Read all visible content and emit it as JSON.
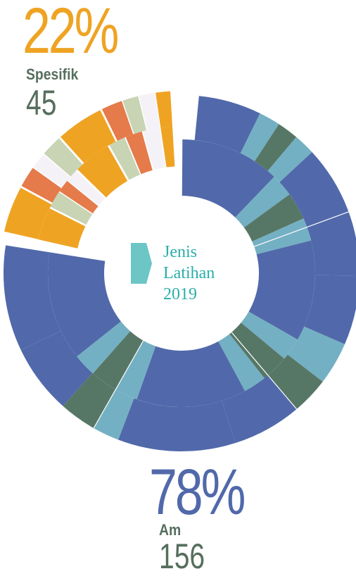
{
  "colors": {
    "general_primary": "#5169AA",
    "general_light": "#74B0C3",
    "general_dark": "#577766",
    "specific_primary": "#EFA323",
    "specific_orange": "#E57B4A",
    "specific_sage": "#C8D4B4",
    "specific_white": "#F4F2F7",
    "center_text": "#2AAFA8",
    "center_marker": "#6CC6C6",
    "label_text": "#566E5E"
  },
  "center": {
    "line1": "Jenis",
    "line2": "Latihan",
    "line3": "2019"
  },
  "chart_data": {
    "type": "pie",
    "variant": "exploded donut",
    "categories": [
      "Spesifik",
      "Am"
    ],
    "values": [
      45,
      156
    ],
    "percent_labels": [
      "22%",
      "78%"
    ],
    "value_labels": [
      "45",
      "156"
    ]
  }
}
